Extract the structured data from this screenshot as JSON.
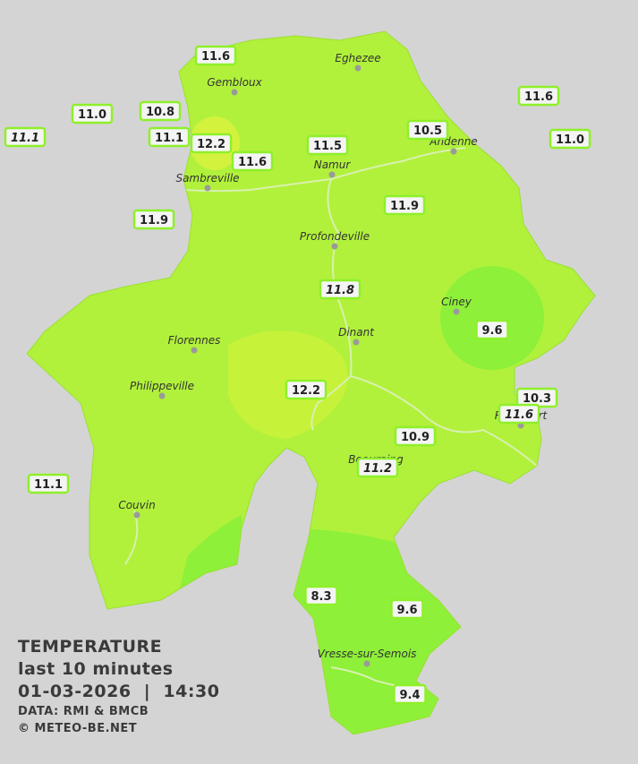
{
  "legend": {
    "title": "TEMPERATURE",
    "subtitle": "last 10 minutes",
    "datetime": "01-03-2026  |  14:30",
    "source": "DATA: RMI & BMCB",
    "copyright": "© METEO-BE.NET"
  },
  "cities": [
    "Eghezee",
    "Gembloux",
    "Andenne",
    "Namur",
    "Sambreville",
    "Profondeville",
    "Ciney",
    "Dinant",
    "Florennes",
    "Philippeville",
    "Rochefort",
    "Beauraing",
    "Couvin",
    "Vresse-sur-Semois"
  ],
  "stations": [
    {
      "label": "11.6"
    },
    {
      "label": "10.8"
    },
    {
      "label": "11.0"
    },
    {
      "label": "11.1",
      "style": "italic"
    },
    {
      "label": "11.1"
    },
    {
      "label": "12.2"
    },
    {
      "label": "11.6"
    },
    {
      "label": "11.5"
    },
    {
      "label": "10.5"
    },
    {
      "label": "11.6"
    },
    {
      "label": "11.0"
    },
    {
      "label": "11.9"
    },
    {
      "label": "11.9"
    },
    {
      "label": "11.8",
      "style": "italic"
    },
    {
      "label": "9.6"
    },
    {
      "label": "12.2"
    },
    {
      "label": "10.3"
    },
    {
      "label": "11.6",
      "style": "italic"
    },
    {
      "label": "10.9"
    },
    {
      "label": "11.2",
      "style": "italic"
    },
    {
      "label": "11.1"
    },
    {
      "label": "8.3"
    },
    {
      "label": "9.6"
    },
    {
      "label": "9.4"
    }
  ]
}
